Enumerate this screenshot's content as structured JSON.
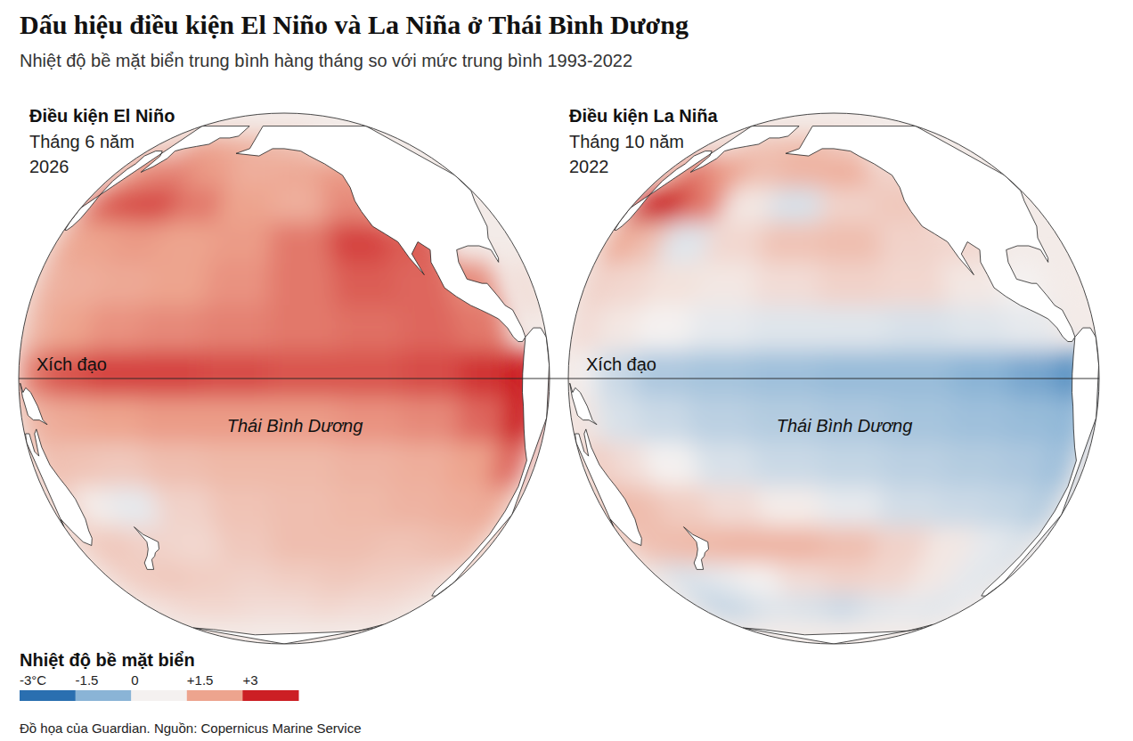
{
  "chart_data": {
    "type": "map",
    "title": "Dấu hiệu điều kiện El Niño và La Niña ở Thái Bình Dương",
    "subtitle": "Nhiệt độ bề mặt biển trung bình hàng tháng so với mức trung bình 1993-2022",
    "lats": [
      60,
      50,
      40,
      30,
      20,
      10,
      0,
      -10,
      -20,
      -30,
      -40,
      -50,
      -60
    ],
    "lons": [
      130,
      145,
      160,
      175,
      190,
      205,
      220,
      235,
      250,
      265,
      280,
      295
    ],
    "panels": [
      {
        "label": "Điều kiện El Niño",
        "period_lines": [
          "Tháng 6 năm",
          "2026"
        ],
        "equator_label": "Xích đạo",
        "ocean_label": "Thái Bình Dương",
        "anomaly": [
          [
            null,
            1.3,
            null,
            1.6,
            1.4,
            1.2,
            1.0,
            null,
            null,
            null,
            null,
            null
          ],
          [
            null,
            1.5,
            1.8,
            1.9,
            1.6,
            1.3,
            1.4,
            1.6,
            null,
            null,
            null,
            null
          ],
          [
            1.8,
            2.0,
            2.4,
            2.5,
            2.0,
            1.5,
            1.3,
            1.8,
            null,
            null,
            null,
            null
          ],
          [
            1.5,
            1.4,
            1.5,
            1.6,
            1.5,
            1.6,
            2.0,
            2.6,
            2.3,
            null,
            null,
            null
          ],
          [
            1.2,
            1.2,
            1.3,
            1.4,
            1.5,
            1.7,
            2.0,
            2.3,
            2.2,
            1.8,
            null,
            0.6
          ],
          [
            1.0,
            1.2,
            1.5,
            1.7,
            1.8,
            1.9,
            2.0,
            2.1,
            2.2,
            2.0,
            null,
            null
          ],
          [
            1.6,
            2.0,
            2.4,
            2.6,
            2.6,
            2.5,
            2.4,
            2.4,
            2.5,
            2.8,
            3.5,
            null
          ],
          [
            1.0,
            1.2,
            1.4,
            1.5,
            1.6,
            1.6,
            1.6,
            1.7,
            1.8,
            2.2,
            3.2,
            null
          ],
          [
            null,
            1.0,
            0.9,
            0.8,
            1.0,
            1.1,
            1.1,
            1.2,
            1.3,
            1.5,
            2.2,
            null
          ],
          [
            null,
            0.8,
            0.1,
            -0.2,
            0.6,
            0.9,
            1.0,
            1.1,
            1.2,
            1.3,
            1.4,
            null
          ],
          [
            0.6,
            0.7,
            0.8,
            0.6,
            0.5,
            0.8,
            1.0,
            1.0,
            0.9,
            1.0,
            1.1,
            null
          ],
          [
            0.5,
            0.6,
            0.7,
            0.8,
            0.7,
            0.6,
            0.7,
            0.8,
            0.7,
            0.6,
            0.5,
            null
          ],
          [
            0.3,
            0.4,
            0.4,
            0.5,
            0.5,
            0.4,
            0.4,
            0.5,
            0.4,
            0.4,
            0.3,
            0.2
          ]
        ]
      },
      {
        "label": "Điều kiện La Niña",
        "period_lines": [
          "Tháng 10 năm",
          "2022"
        ],
        "equator_label": "Xích đạo",
        "ocean_label": "Thái Bình Dương",
        "anomaly": [
          [
            null,
            0.8,
            null,
            0.9,
            1.0,
            1.1,
            0.8,
            null,
            null,
            null,
            null,
            null
          ],
          [
            null,
            1.5,
            2.2,
            1.6,
            1.0,
            1.2,
            1.3,
            0.6,
            null,
            null,
            null,
            null
          ],
          [
            2.0,
            3.2,
            3.5,
            2.0,
            0.2,
            -0.4,
            0.6,
            0.8,
            null,
            null,
            null,
            null
          ],
          [
            1.2,
            1.5,
            1.0,
            -0.3,
            0.5,
            0.9,
            1.0,
            0.6,
            0.5,
            null,
            null,
            null
          ],
          [
            0.8,
            0.6,
            0.5,
            0.3,
            0.2,
            0.4,
            0.6,
            0.5,
            0.2,
            0.0,
            null,
            0.1
          ],
          [
            0.6,
            0.4,
            0.2,
            0.0,
            -0.2,
            -0.3,
            -0.3,
            -0.4,
            -0.3,
            -0.2,
            null,
            null
          ],
          [
            0.3,
            0.0,
            -0.6,
            -1.0,
            -1.1,
            -1.2,
            -1.3,
            -1.3,
            -1.5,
            -1.8,
            -2.2,
            null
          ],
          [
            0.6,
            0.2,
            -0.4,
            -0.6,
            -0.8,
            -0.9,
            -1.0,
            -1.1,
            -1.2,
            -1.3,
            -1.4,
            null
          ],
          [
            null,
            0.8,
            0.4,
            0.0,
            -0.4,
            -0.6,
            -0.7,
            -0.8,
            -0.9,
            -1.0,
            -1.2,
            null
          ],
          [
            null,
            1.2,
            1.0,
            0.7,
            0.4,
            0.1,
            -0.2,
            -0.5,
            -0.6,
            -0.7,
            -0.9,
            null
          ],
          [
            0.8,
            0.9,
            1.0,
            1.1,
            1.2,
            1.2,
            1.0,
            0.6,
            0.2,
            -0.2,
            -0.4,
            null
          ],
          [
            0.2,
            -0.3,
            -0.4,
            -0.2,
            0.0,
            0.4,
            0.6,
            0.5,
            0.2,
            -0.2,
            -0.3,
            null
          ],
          [
            -0.3,
            -0.6,
            -0.8,
            -0.5,
            -0.3,
            -0.4,
            -0.6,
            -0.3,
            -0.2,
            -0.3,
            -0.2,
            -0.1
          ]
        ]
      }
    ],
    "colorbar": {
      "title": "Nhiệt độ bề mặt biển",
      "range": [
        -3,
        3
      ],
      "ticks": [
        {
          "value": -3,
          "label": "-3°C"
        },
        -1.5,
        0,
        {
          "value": 1.5,
          "label": "+1.5"
        },
        {
          "value": 3,
          "label": "+3"
        }
      ],
      "colors": [
        "#2a6fb0",
        "#8ab4d6",
        "#f4f1f0",
        "#eda48e",
        "#cc1f24"
      ]
    },
    "source": "Đồ họa của Guardian. Nguồn: Copernicus Marine Service"
  }
}
